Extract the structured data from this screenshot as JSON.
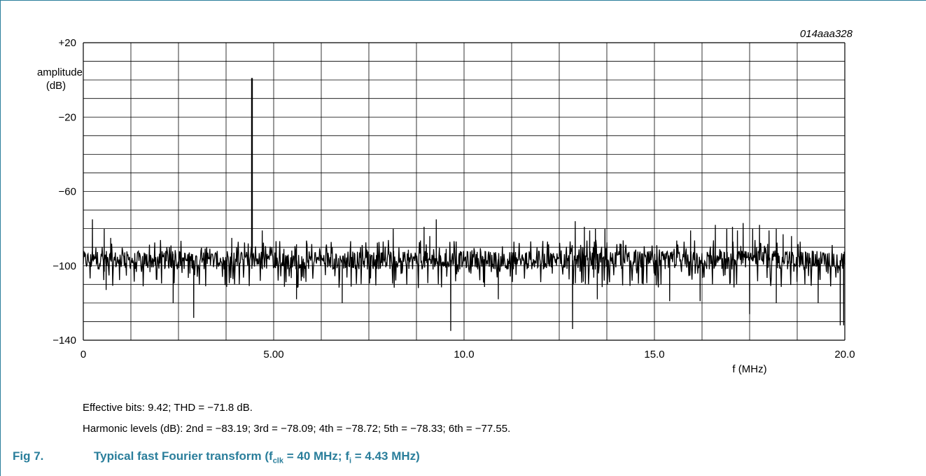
{
  "figure": {
    "code": "014aaa328",
    "label": "Fig 7.",
    "title_prefix": "Typical fast Fourier transform (f",
    "title_sub1": "clk",
    "title_mid": " = 40 MHz; f",
    "title_sub2": "i",
    "title_suffix": " = 4.43 MHz)"
  },
  "notes": {
    "line1": "Effective bits: 9.42; THD = −71.8 dB.",
    "line2": "Harmonic levels (dB): 2nd = −83.19; 3rd = −78.09; 4th = −78.72; 5th = −78.33; 6th = −77.55."
  },
  "colors": {
    "accent": "#2a7e9b",
    "trace": "#000000",
    "grid": "#000000"
  },
  "chart_data": {
    "type": "line",
    "ylabel_line1": "amplitude",
    "ylabel_line2": "(dB)",
    "xlabel": "f (MHz)",
    "xlim": [
      0,
      20
    ],
    "ylim": [
      -140,
      20
    ],
    "x_tick_labels": [
      {
        "value": 0,
        "label": "0"
      },
      {
        "value": 5,
        "label": "5.00"
      },
      {
        "value": 10,
        "label": "10.0"
      },
      {
        "value": 15,
        "label": "15.0"
      },
      {
        "value": 20,
        "label": "20.0"
      }
    ],
    "y_tick_labels": [
      {
        "value": 20,
        "label": "+20"
      },
      {
        "value": -20,
        "label": "−20"
      },
      {
        "value": -60,
        "label": "−60"
      },
      {
        "value": -100,
        "label": "−100"
      },
      {
        "value": -140,
        "label": "−140"
      }
    ],
    "grid": true,
    "grid_x_divisions": 16,
    "grid_y_divisions": 16,
    "noise_floor_db": -97,
    "fundamental": {
      "x": 4.43,
      "y": 1
    },
    "spurs_up": [
      {
        "x": 0.24,
        "y": -75
      },
      {
        "x": 0.55,
        "y": -80
      },
      {
        "x": 0.72,
        "y": -85
      },
      {
        "x": 3.9,
        "y": -85
      },
      {
        "x": 4.7,
        "y": -81
      },
      {
        "x": 8.14,
        "y": -80
      },
      {
        "x": 8.95,
        "y": -79
      },
      {
        "x": 9.1,
        "y": -84
      },
      {
        "x": 9.27,
        "y": -75
      },
      {
        "x": 12.92,
        "y": -76
      },
      {
        "x": 13.16,
        "y": -79
      },
      {
        "x": 13.3,
        "y": -81
      },
      {
        "x": 13.45,
        "y": -80
      },
      {
        "x": 13.7,
        "y": -80
      },
      {
        "x": 15.95,
        "y": -81
      },
      {
        "x": 16.6,
        "y": -78
      },
      {
        "x": 16.9,
        "y": -80
      },
      {
        "x": 17.05,
        "y": -79
      },
      {
        "x": 17.18,
        "y": -81
      },
      {
        "x": 17.33,
        "y": -77
      },
      {
        "x": 17.58,
        "y": -80
      },
      {
        "x": 17.76,
        "y": -78
      },
      {
        "x": 18.01,
        "y": -81
      },
      {
        "x": 18.2,
        "y": -80
      },
      {
        "x": 18.38,
        "y": -83
      },
      {
        "x": 18.6,
        "y": -84
      }
    ],
    "spurs_down": [
      {
        "x": 0.6,
        "y": -113
      },
      {
        "x": 2.36,
        "y": -120
      },
      {
        "x": 2.9,
        "y": -128
      },
      {
        "x": 5.6,
        "y": -118
      },
      {
        "x": 6.8,
        "y": -120
      },
      {
        "x": 9.65,
        "y": -135
      },
      {
        "x": 10.9,
        "y": -118
      },
      {
        "x": 12.85,
        "y": -134
      },
      {
        "x": 13.5,
        "y": -118
      },
      {
        "x": 15.4,
        "y": -119
      },
      {
        "x": 16.2,
        "y": -119
      },
      {
        "x": 17.5,
        "y": -126
      },
      {
        "x": 18.2,
        "y": -120
      },
      {
        "x": 19.3,
        "y": -120
      },
      {
        "x": 19.88,
        "y": -132
      },
      {
        "x": 19.97,
        "y": -132
      }
    ]
  }
}
